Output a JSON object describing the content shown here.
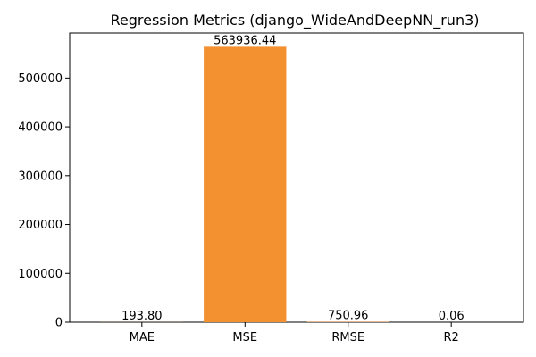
{
  "chart_data": {
    "type": "bar",
    "title": "Regression Metrics (django_WideAndDeepNN_run3)",
    "xlabel": "",
    "ylabel": "",
    "categories": [
      "MAE",
      "MSE",
      "RMSE",
      "R2"
    ],
    "values": [
      193.8,
      563936.44,
      750.96,
      0.06
    ],
    "value_labels": [
      "193.80",
      "563936.44",
      "750.96",
      "0.06"
    ],
    "ylim": [
      0,
      592000
    ],
    "yticks": [
      0,
      100000,
      200000,
      300000,
      400000,
      500000
    ],
    "ytick_labels": [
      "0",
      "100000",
      "200000",
      "300000",
      "400000",
      "500000"
    ],
    "bar_color": "#f39130",
    "grid": false,
    "legend": false
  }
}
